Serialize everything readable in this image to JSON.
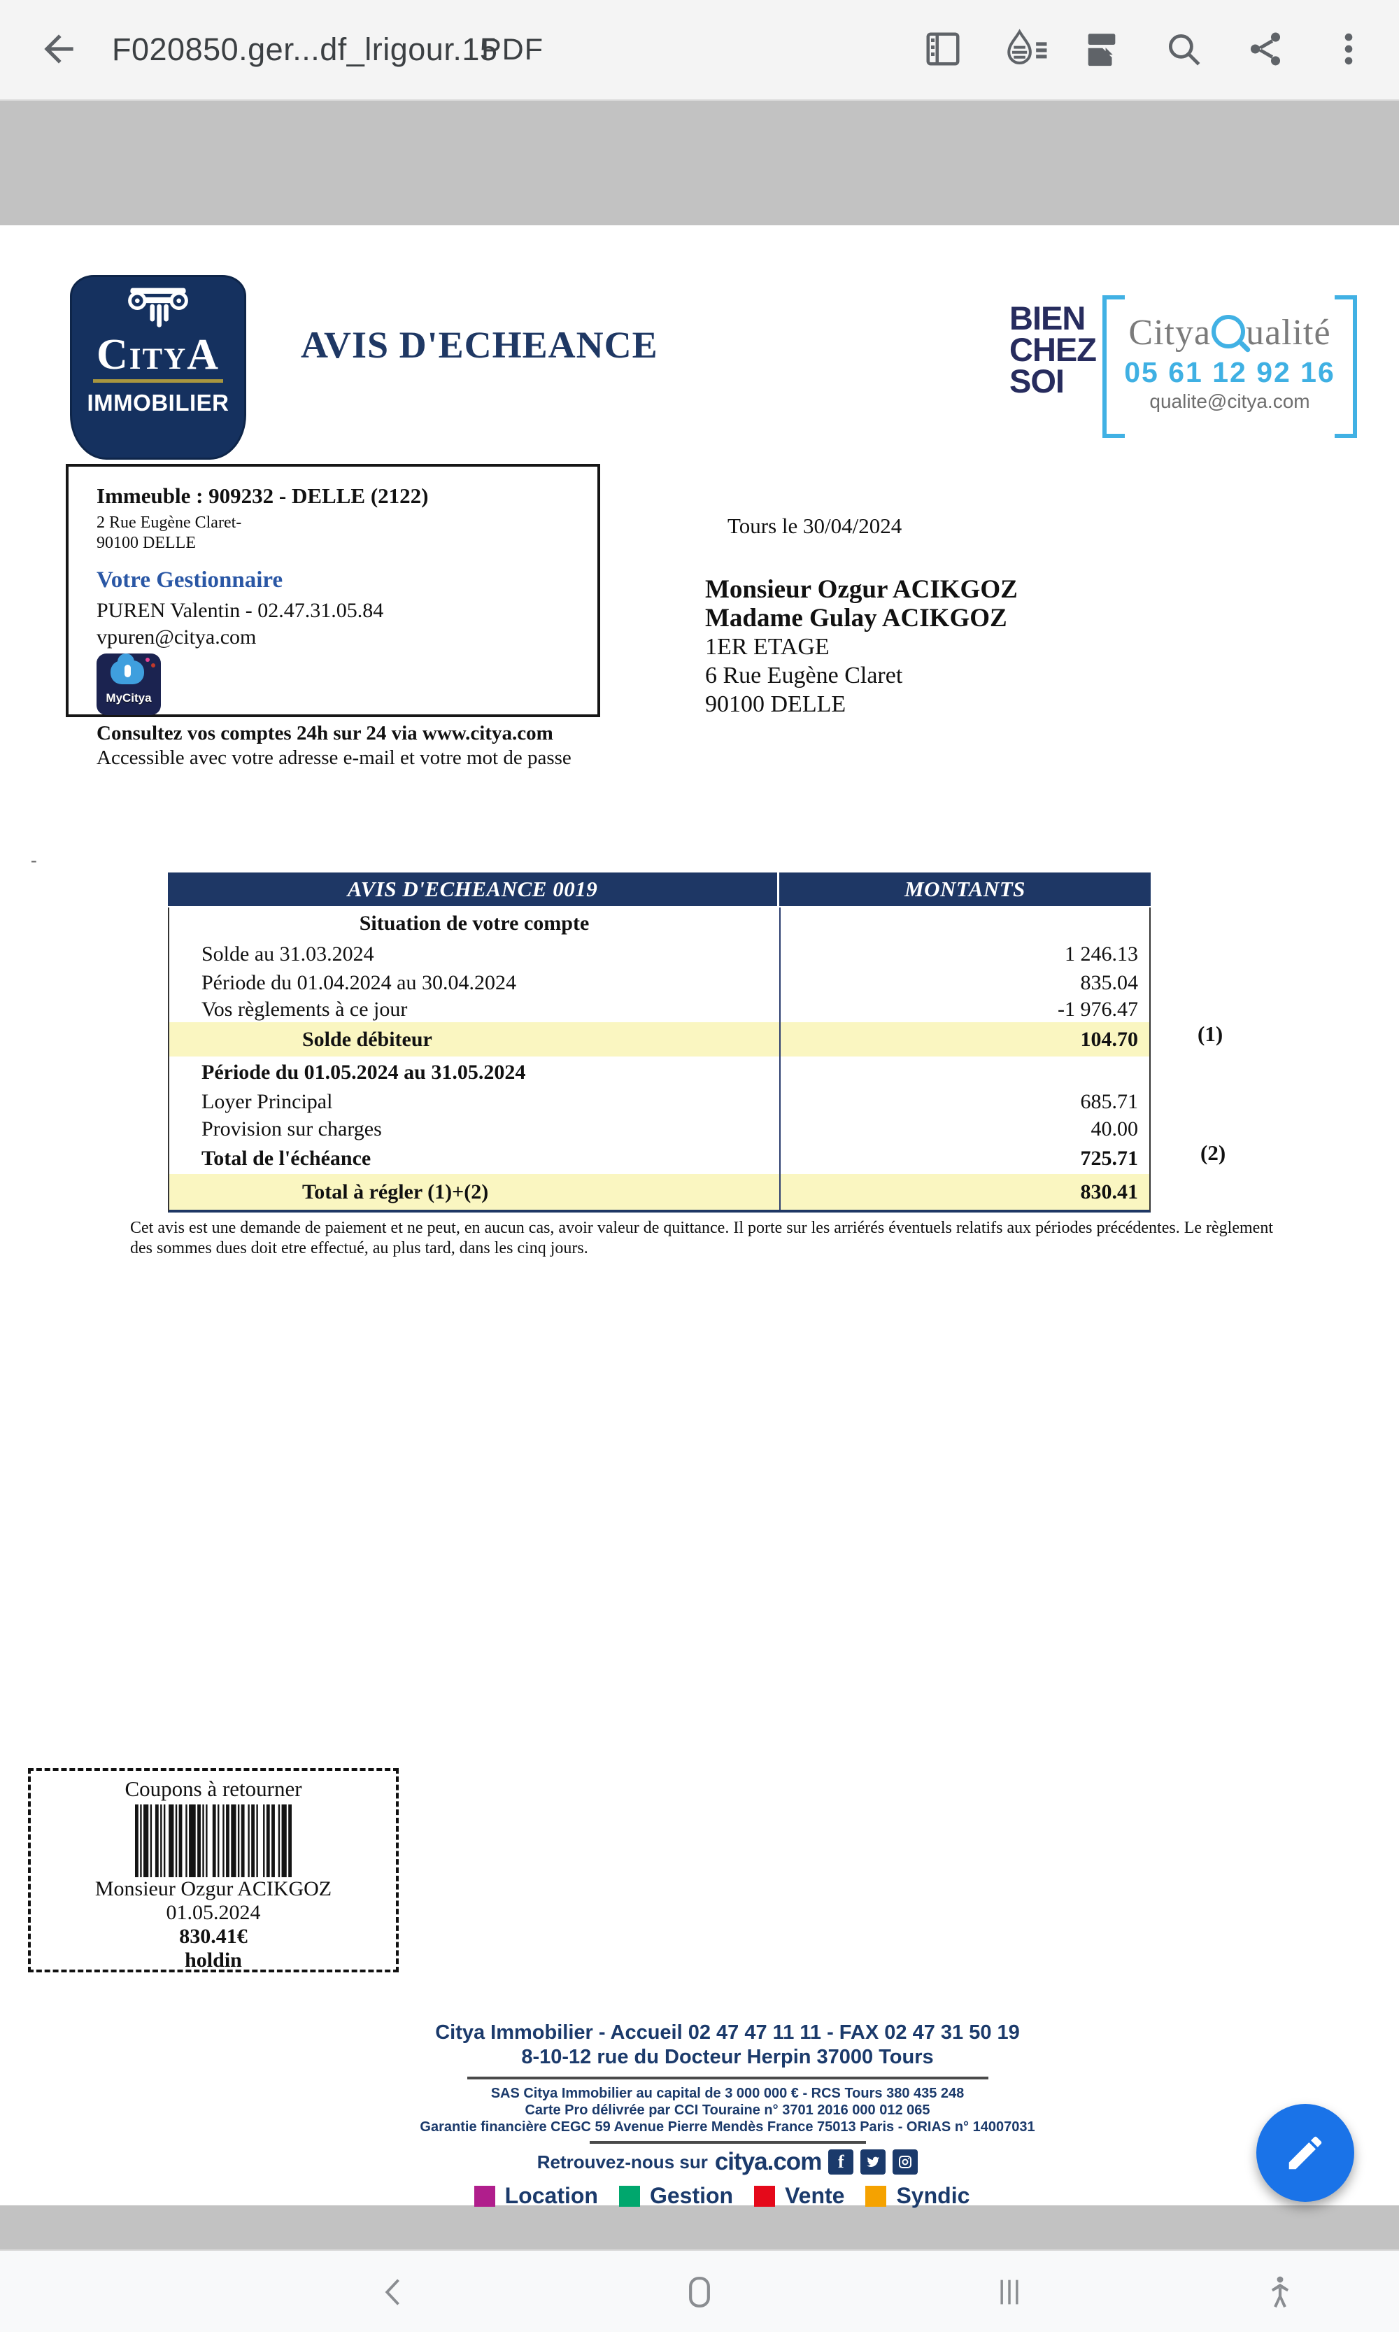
{
  "appbar": {
    "title": "F020850.ger...df_lrigour.15",
    "type_label": "PDF",
    "icons": [
      "back-arrow",
      "page-thumbnails",
      "liquid-mode",
      "page-view",
      "search",
      "share",
      "more-options"
    ]
  },
  "logo": {
    "brand": "CityA",
    "sub": "IMMOBILIER"
  },
  "main_title": "AVIS D'ECHEANCE",
  "brand_box": {
    "slogan_line1": "BIEN",
    "slogan_line2": "CHEZ",
    "slogan_line3": "SOI",
    "quality_prefix": "Citya",
    "quality_suffix": "ualité",
    "phone": "05 61 12 92 16",
    "email": "qualite@citya.com"
  },
  "building_box": {
    "title": "Immeuble : 909232 - DELLE (2122)",
    "addr1": "2 Rue Eugène Claret-",
    "addr2": "90100 DELLE",
    "manager_title": "Votre Gestionnaire",
    "manager": "PUREN Valentin - 02.47.31.05.84",
    "manager_email": "vpuren@citya.com",
    "app_badge": "MyCitya",
    "note_bold": "Consultez vos comptes 24h sur 24 via www.citya.com",
    "note": "Accessible avec votre adresse e-mail et votre mot de passe"
  },
  "date_line": "Tours le 30/04/2024",
  "recipient": [
    "Monsieur Ozgur ACIKGOZ",
    "Madame Gulay ACIKGOZ",
    "1ER ETAGE",
    "6 Rue Eugène Claret",
    "90100 DELLE"
  ],
  "stray_mark": "-",
  "table": {
    "header": {
      "col1": "AVIS D'ECHEANCE 0019",
      "col2": "MONTANTS"
    },
    "rows": [
      {
        "label": "Situation de votre compte",
        "value": ""
      },
      {
        "label": "Solde au 31.03.2024",
        "value": "1 246.13"
      },
      {
        "label": "Période du 01.04.2024 au 30.04.2024",
        "value": "835.04"
      },
      {
        "label": "Vos règlements à ce jour",
        "value": "-1 976.47"
      },
      {
        "label": "Solde débiteur",
        "value": "104.70"
      },
      {
        "label": "Période du 01.05.2024 au 31.05.2024",
        "value": ""
      },
      {
        "label": "Loyer Principal",
        "value": "685.71"
      },
      {
        "label": "Provision sur charges",
        "value": "40.00"
      },
      {
        "label": "Total de l'échéance",
        "value": "725.71"
      },
      {
        "label": "Total à régler (1)+(2)",
        "value": "830.41"
      }
    ],
    "annotation1": "(1)",
    "annotation2": "(2)"
  },
  "disclaimer": "Cet avis est une demande de paiement et ne peut, en aucun cas, avoir valeur de quittance. Il porte sur les arriérés éventuels relatifs aux périodes précédentes. Le règlement des sommes dues doit etre effectué, au plus tard, dans les cinq jours.",
  "coupon": {
    "title": "Coupons à retourner",
    "name": "Monsieur Ozgur ACIKGOZ",
    "date": "01.05.2024",
    "amount": "830.41€",
    "ref": "holdin",
    "barcode": [
      2,
      1,
      1,
      1,
      3,
      1,
      1,
      2,
      2,
      1,
      1,
      1,
      1,
      2,
      3,
      1,
      1,
      1,
      2,
      2,
      1,
      1,
      4,
      1,
      2,
      1,
      1,
      1,
      1,
      3,
      2,
      1,
      1,
      2,
      1,
      1,
      2,
      1,
      3,
      1,
      1,
      1,
      2,
      2,
      1,
      1,
      2,
      1,
      1,
      3,
      1,
      1,
      2,
      1,
      2,
      2,
      1,
      1,
      3,
      1,
      2
    ]
  },
  "footer": {
    "line1": "Citya Immobilier - Accueil 02 47 47 11 11  - FAX 02 47 31 50 19",
    "line2": "8-10-12 rue du Docteur Herpin  37000 Tours",
    "line3": "SAS Citya Immobilier au capital de 3 000 000 € - RCS Tours 380 435 248",
    "line4": "Carte Pro délivrée par CCI Touraine n° 3701 2016 000 012 065",
    "line5": "Garantie financière CEGC 59 Avenue Pierre Mendès France  75013 Paris - ORIAS n° 14007031",
    "social_text": "Retrouvez-nous sur",
    "social_site": "citya.com",
    "social_icons": [
      "facebook",
      "twitter",
      "instagram"
    ],
    "legend": [
      {
        "label": "Location",
        "color": "#b01e8c"
      },
      {
        "label": "Gestion",
        "color": "#00a76d"
      },
      {
        "label": "Vente",
        "color": "#e5091a"
      },
      {
        "label": "Syndic",
        "color": "#f5a200"
      }
    ]
  },
  "nav": {
    "icons": [
      "back",
      "home",
      "recents",
      "accessibility"
    ]
  },
  "colors": {
    "navy": "#1e3765",
    "highlight_yellow": "#faf6c1",
    "accent_blue": "#41b1e4",
    "fab_blue": "#1a73e8"
  }
}
